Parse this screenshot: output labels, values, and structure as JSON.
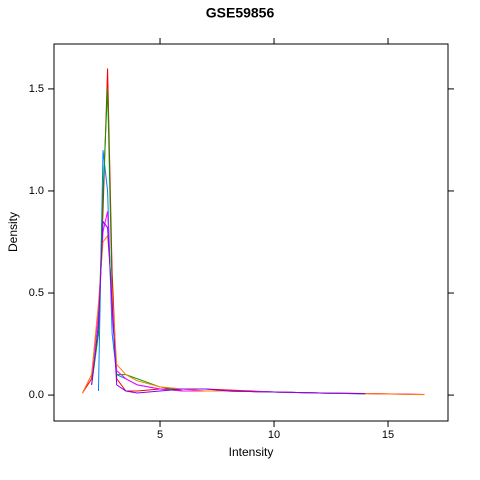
{
  "chart_data": {
    "type": "line",
    "title": "GSE59856",
    "x_label": "Intensity",
    "y_label": "Density",
    "x": [
      1.6,
      2.0,
      2.3,
      2.5,
      2.7,
      2.9,
      3.1,
      3.5,
      4,
      5,
      6,
      7,
      8,
      10,
      12,
      14,
      16.6
    ],
    "series": [
      {
        "color": "#ff0000",
        "values": [
          0.01,
          0.08,
          0.3,
          0.9,
          1.6,
          0.6,
          0.08,
          0.02,
          0.02,
          0.03,
          0.03,
          0.03,
          0.025,
          0.015,
          0.01,
          0.008,
          0.003
        ]
      },
      {
        "color": "#0080ff",
        "values": [
          null,
          null,
          0.02,
          1.2,
          1.0,
          0.3,
          0.1,
          0.08,
          0.05,
          0.03,
          0.02,
          0.02,
          0.02,
          0.015,
          0.01,
          0.006,
          null
        ]
      },
      {
        "color": "#00a000",
        "values": [
          null,
          0.05,
          0.3,
          1.0,
          1.5,
          0.5,
          0.1,
          0.1,
          0.08,
          0.04,
          0.02,
          0.02,
          0.02,
          0.015,
          0.01,
          0.006,
          null
        ]
      },
      {
        "color": "#ff00ff",
        "values": [
          0.01,
          0.1,
          0.4,
          0.8,
          0.9,
          0.4,
          0.12,
          0.08,
          0.05,
          0.03,
          0.02,
          0.02,
          0.02,
          0.015,
          0.01,
          0.007,
          0.003
        ]
      },
      {
        "color": "#ff8000",
        "values": [
          0.01,
          0.1,
          0.45,
          0.75,
          0.78,
          0.5,
          0.15,
          0.1,
          0.07,
          0.04,
          0.03,
          0.02,
          0.02,
          0.015,
          0.01,
          0.007,
          0.002
        ]
      },
      {
        "color": "#8000ff",
        "values": [
          null,
          0.05,
          0.35,
          0.85,
          0.82,
          0.45,
          0.05,
          0.02,
          0.01,
          0.02,
          0.03,
          0.03,
          0.02,
          0.015,
          0.01,
          0.007,
          null
        ]
      }
    ],
    "xlim": [
      0.35,
      17.63
    ],
    "ylim": [
      -0.127,
      1.72
    ],
    "xticks": [
      5,
      10,
      15
    ],
    "yticks": [
      {
        "value": 0,
        "label": "0.0"
      },
      {
        "value": 0.5,
        "label": "0.5"
      },
      {
        "value": 1,
        "label": "1.0"
      },
      {
        "value": 1.5,
        "label": "1.5"
      }
    ]
  }
}
